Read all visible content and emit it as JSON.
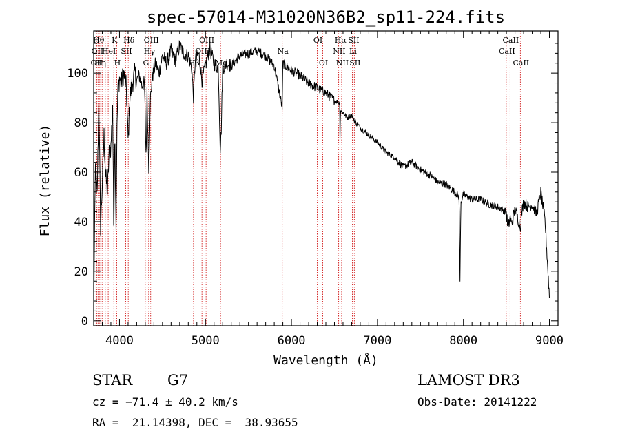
{
  "chart_data": {
    "type": "line",
    "title": "spec-57014-M31020N36B2_sp11-224.fits",
    "xlabel": "Wavelength (Å)",
    "ylabel": "Flux (relative)",
    "xlim": [
      3700,
      9100
    ],
    "ylim": [
      -2,
      117
    ],
    "xticks": [
      4000,
      5000,
      6000,
      7000,
      8000,
      9000
    ],
    "yticks": [
      0,
      20,
      40,
      60,
      80,
      100
    ],
    "series": [
      {
        "name": "flux",
        "x": [
          3700,
          3720,
          3740,
          3760,
          3780,
          3800,
          3820,
          3840,
          3860,
          3880,
          3900,
          3920,
          3933,
          3945,
          3960,
          3968,
          3980,
          4000,
          4020,
          4050,
          4080,
          4101,
          4120,
          4150,
          4180,
          4200,
          4230,
          4260,
          4290,
          4310,
          4320,
          4340,
          4360,
          4380,
          4420,
          4460,
          4500,
          4550,
          4600,
          4650,
          4700,
          4750,
          4800,
          4840,
          4861,
          4880,
          4920,
          4960,
          5000,
          5050,
          5100,
          5150,
          5172,
          5183,
          5200,
          5250,
          5300,
          5400,
          5500,
          5600,
          5700,
          5800,
          5893,
          5900,
          6000,
          6100,
          6200,
          6300,
          6400,
          6500,
          6560,
          6563,
          6570,
          6600,
          6650,
          6700,
          6750,
          6800,
          6900,
          7000,
          7100,
          7200,
          7300,
          7400,
          7500,
          7600,
          7700,
          7800,
          7900,
          7950,
          7960,
          7970,
          8000,
          8100,
          8200,
          8300,
          8400,
          8498,
          8520,
          8542,
          8560,
          8600,
          8662,
          8680,
          8700,
          8750,
          8800,
          8850,
          8900,
          8950,
          9000
        ],
        "y": [
          5,
          62,
          50,
          90,
          38,
          55,
          75,
          58,
          52,
          68,
          70,
          88,
          35,
          78,
          38,
          70,
          92,
          98,
          96,
          100,
          94,
          72,
          90,
          96,
          100,
          97,
          99,
          95,
          96,
          65,
          92,
          62,
          90,
          98,
          104,
          100,
          107,
          104,
          109,
          105,
          111,
          108,
          107,
          102,
          90,
          105,
          108,
          97,
          103,
          110,
          104,
          102,
          70,
          76,
          102,
          104,
          103,
          107,
          108,
          109,
          107,
          103,
          86,
          104,
          101,
          99,
          96,
          94,
          92,
          89,
          88,
          72,
          85,
          84,
          82,
          83,
          80,
          78,
          75,
          72,
          68,
          66,
          62,
          64,
          61,
          59,
          56,
          55,
          52,
          50,
          15,
          48,
          51,
          49,
          49,
          47,
          46,
          44,
          37,
          42,
          39,
          45,
          38,
          44,
          48,
          46,
          47,
          43,
          52,
          40,
          10
        ]
      }
    ],
    "lines": [
      {
        "wl": 3727,
        "row": 2,
        "label": "OII"
      },
      {
        "wl": 3735,
        "row": 1,
        "label": "OII"
      },
      {
        "wl": 3750,
        "row": 0,
        "label": "Hθ"
      },
      {
        "wl": 3771,
        "row": 2,
        "label": "Hη"
      },
      {
        "wl": 3798,
        "row": 0,
        "label": ""
      },
      {
        "wl": 3835,
        "row": 0,
        "label": ""
      },
      {
        "wl": 3869,
        "row": 1,
        "label": "HeI"
      },
      {
        "wl": 3889,
        "row": 0,
        "label": ""
      },
      {
        "wl": 3934,
        "row": 0,
        "label": "K"
      },
      {
        "wl": 3968,
        "row": 2,
        "label": "H"
      },
      {
        "wl": 4072,
        "row": 1,
        "label": "SII"
      },
      {
        "wl": 4102,
        "row": 0,
        "label": "Hδ"
      },
      {
        "wl": 4300,
        "row": 2,
        "label": "G"
      },
      {
        "wl": 4340,
        "row": 1,
        "label": "Hγ"
      },
      {
        "wl": 4363,
        "row": 0,
        "label": "OIII"
      },
      {
        "wl": 4861,
        "row": 2,
        "label": "Hβ"
      },
      {
        "wl": 4959,
        "row": 1,
        "label": "OIII"
      },
      {
        "wl": 5007,
        "row": 0,
        "label": "OIII"
      },
      {
        "wl": 5175,
        "row": 2,
        "label": "Mg"
      },
      {
        "wl": 5893,
        "row": 1,
        "label": "Na"
      },
      {
        "wl": 6300,
        "row": 0,
        "label": "OI"
      },
      {
        "wl": 6364,
        "row": 2,
        "label": "OI"
      },
      {
        "wl": 6548,
        "row": 1,
        "label": "NII"
      },
      {
        "wl": 6563,
        "row": 0,
        "label": "Hα"
      },
      {
        "wl": 6584,
        "row": 2,
        "label": "NII"
      },
      {
        "wl": 6708,
        "row": 1,
        "label": "Li"
      },
      {
        "wl": 6716,
        "row": 0,
        "label": "SII"
      },
      {
        "wl": 6731,
        "row": 2,
        "label": "SII"
      },
      {
        "wl": 8498,
        "row": 1,
        "label": "CaII"
      },
      {
        "wl": 8542,
        "row": 0,
        "label": "CaII"
      },
      {
        "wl": 8662,
        "row": 2,
        "label": "CaII"
      }
    ]
  },
  "info": {
    "class": "STAR",
    "subclass": "G7",
    "survey": "LAMOST DR3",
    "cz": "cz = −71.4 ± 40.2 km/s",
    "obs_date": "Obs-Date: 20141222",
    "coords": "RA =  21.14398, DEC =  38.93655"
  }
}
